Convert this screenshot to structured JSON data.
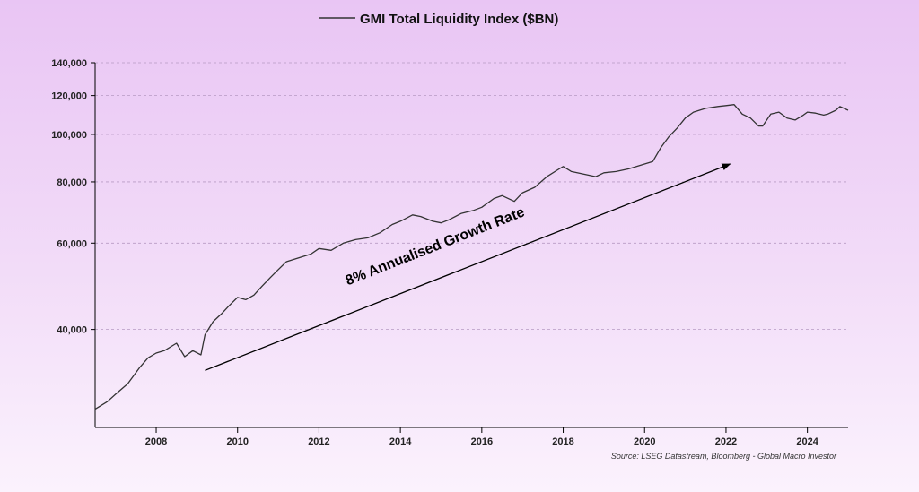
{
  "chart_data": {
    "type": "line",
    "title": "",
    "xlabel": "",
    "ylabel": "",
    "y_scale": "log",
    "ylim": [
      27000,
      140000
    ],
    "xlim": [
      2006.5,
      2025.0
    ],
    "y_ticks": [
      {
        "value": 40000,
        "label": "40,000"
      },
      {
        "value": 60000,
        "label": "60,000"
      },
      {
        "value": 80000,
        "label": "80,000"
      },
      {
        "value": 100000,
        "label": "100,000"
      },
      {
        "value": 120000,
        "label": "120,000"
      },
      {
        "value": 140000,
        "label": "140,000"
      }
    ],
    "x_ticks": [
      {
        "value": 2008,
        "label": "2008"
      },
      {
        "value": 2010,
        "label": "2010"
      },
      {
        "value": 2012,
        "label": "2012"
      },
      {
        "value": 2014,
        "label": "2014"
      },
      {
        "value": 2016,
        "label": "2016"
      },
      {
        "value": 2018,
        "label": "2018"
      },
      {
        "value": 2020,
        "label": "2020"
      },
      {
        "value": 2022,
        "label": "2022"
      },
      {
        "value": 2024,
        "label": "2024"
      }
    ],
    "grid": "horizontal-dashed",
    "legend_position": "top-center",
    "series": [
      {
        "name": "GMI Total Liquidity Index ($BN)",
        "color": "#333333",
        "x": [
          2006.5,
          2006.8,
          2007.0,
          2007.3,
          2007.6,
          2007.8,
          2008.0,
          2008.2,
          2008.5,
          2008.7,
          2008.9,
          2009.1,
          2009.2,
          2009.4,
          2009.6,
          2009.8,
          2010.0,
          2010.2,
          2010.4,
          2010.6,
          2010.8,
          2011.0,
          2011.2,
          2011.5,
          2011.8,
          2012.0,
          2012.3,
          2012.6,
          2012.9,
          2013.2,
          2013.5,
          2013.8,
          2014.0,
          2014.3,
          2014.5,
          2014.8,
          2015.0,
          2015.2,
          2015.5,
          2015.8,
          2016.0,
          2016.3,
          2016.5,
          2016.8,
          2017.0,
          2017.3,
          2017.6,
          2017.9,
          2018.0,
          2018.2,
          2018.5,
          2018.8,
          2019.0,
          2019.3,
          2019.6,
          2019.8,
          2020.0,
          2020.2,
          2020.4,
          2020.6,
          2020.8,
          2021.0,
          2021.2,
          2021.5,
          2021.8,
          2022.0,
          2022.2,
          2022.4,
          2022.6,
          2022.8,
          2022.9,
          2023.1,
          2023.3,
          2023.5,
          2023.7,
          2023.9,
          2024.0,
          2024.2,
          2024.4,
          2024.5,
          2024.7,
          2024.8,
          2025.0
        ],
        "values": [
          27500,
          28500,
          29500,
          31000,
          33500,
          35000,
          35800,
          36200,
          37500,
          35200,
          36200,
          35500,
          39000,
          41500,
          43000,
          44800,
          46500,
          46000,
          47000,
          49000,
          51000,
          53000,
          55000,
          56000,
          57000,
          58500,
          58000,
          60000,
          61000,
          61500,
          63000,
          65500,
          66500,
          68500,
          68000,
          66500,
          66000,
          67000,
          69000,
          70000,
          71000,
          74000,
          75000,
          73000,
          76000,
          78000,
          82000,
          85000,
          86000,
          84000,
          83000,
          82000,
          83500,
          84000,
          85000,
          86000,
          87000,
          88000,
          94000,
          99000,
          103000,
          108000,
          111000,
          113000,
          114000,
          114500,
          115000,
          110000,
          108000,
          104000,
          104000,
          110000,
          111000,
          108000,
          107000,
          109500,
          111000,
          110500,
          109500,
          110000,
          112000,
          114000,
          112000
        ]
      }
    ],
    "annotations": [
      {
        "text": "8% Annualised Growth Rate",
        "type": "arrow",
        "from": [
          2009.2,
          33000
        ],
        "to": [
          2022.1,
          87000
        ]
      }
    ],
    "source": "Source: LSEG Datastream, Bloomberg - Global Macro Investor"
  }
}
